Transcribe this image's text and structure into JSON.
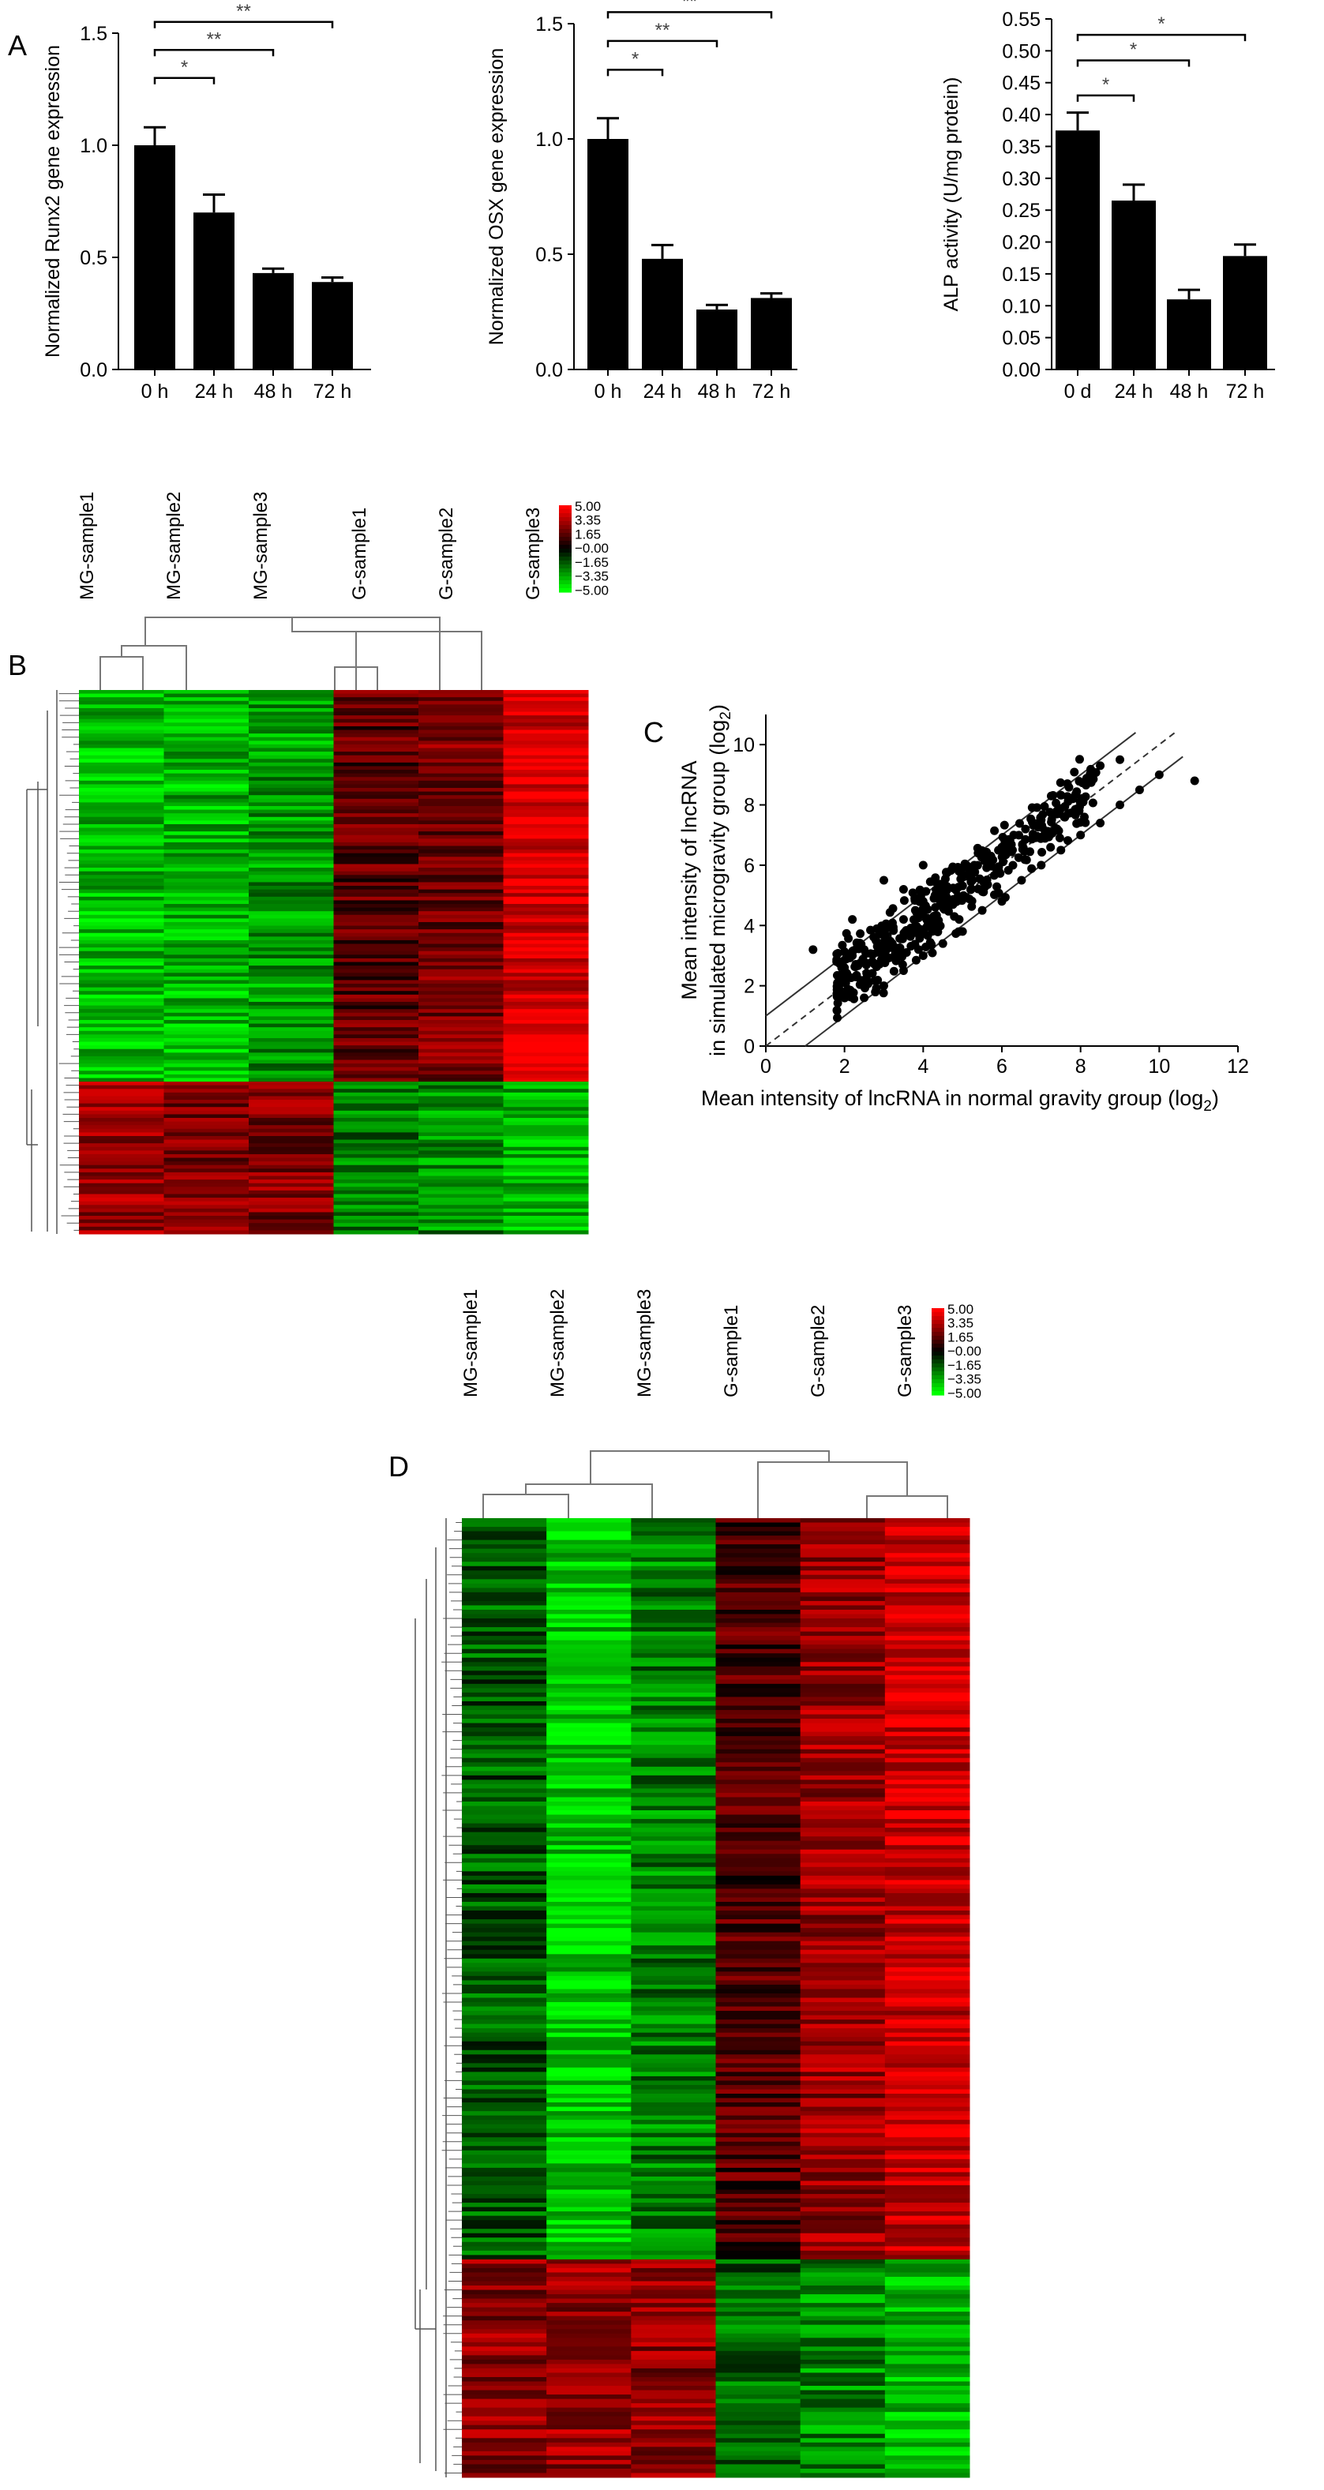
{
  "panels": {
    "A": "A",
    "B": "B",
    "C": "C",
    "D": "D"
  },
  "chart_data": [
    {
      "panel": "A",
      "type": "bar",
      "categories": [
        "0 h",
        "24 h",
        "48 h",
        "72 h"
      ],
      "values": [
        1.0,
        0.7,
        0.43,
        0.39
      ],
      "errors": [
        0.08,
        0.08,
        0.02,
        0.02
      ],
      "ylabel": "Normalized Runx2 gene expression",
      "ylim": [
        0,
        1.5
      ],
      "yticks": [
        "0.0",
        "0.5",
        "1.0",
        "1.5"
      ],
      "significance": [
        {
          "from": 0,
          "to": 1,
          "label": "*"
        },
        {
          "from": 0,
          "to": 2,
          "label": "**"
        },
        {
          "from": 0,
          "to": 3,
          "label": "**"
        }
      ]
    },
    {
      "panel": "A",
      "type": "bar",
      "categories": [
        "0 h",
        "24 h",
        "48 h",
        "72 h"
      ],
      "values": [
        1.0,
        0.48,
        0.26,
        0.31
      ],
      "errors": [
        0.09,
        0.06,
        0.02,
        0.02
      ],
      "ylabel": "Normalized OSX gene expression",
      "ylim": [
        0,
        1.5
      ],
      "yticks": [
        "0.0",
        "0.5",
        "1.0",
        "1.5"
      ],
      "significance": [
        {
          "from": 0,
          "to": 1,
          "label": "*"
        },
        {
          "from": 0,
          "to": 2,
          "label": "**"
        },
        {
          "from": 0,
          "to": 3,
          "label": "**"
        }
      ]
    },
    {
      "panel": "A",
      "type": "bar",
      "categories": [
        "0 d",
        "24 h",
        "48 h",
        "72 h"
      ],
      "values": [
        0.375,
        0.265,
        0.11,
        0.178
      ],
      "errors": [
        0.028,
        0.025,
        0.015,
        0.018
      ],
      "ylabel": "ALP activity (U/mg protein)",
      "ylim": [
        0,
        0.55
      ],
      "yticks": [
        "0.00",
        "0.05",
        "0.10",
        "0.15",
        "0.20",
        "0.25",
        "0.30",
        "0.35",
        "0.40",
        "0.45",
        "0.50",
        "0.55"
      ],
      "significance": [
        {
          "from": 0,
          "to": 1,
          "label": "*"
        },
        {
          "from": 0,
          "to": 2,
          "label": "*"
        },
        {
          "from": 0,
          "to": 3,
          "label": "*"
        }
      ]
    },
    {
      "panel": "B",
      "type": "heatmap",
      "columns": [
        "MG-sample1",
        "MG-sample2",
        "MG-sample3",
        "G-sample1",
        "G-sample2",
        "G-sample3"
      ],
      "legend_ticks": [
        "5.00",
        "3.35",
        "1.65",
        "−0.00",
        "−1.65",
        "−3.35",
        "−5.00"
      ],
      "colors": {
        "high": "#ff0000",
        "mid": "#000000",
        "low": "#00ff00"
      },
      "dendrogram_top": [
        [
          "MG-sample1",
          "MG-sample2"
        ],
        "MG-sample3",
        [
          [
            "G-sample1",
            "G-sample2"
          ],
          "G-sample3"
        ]
      ]
    },
    {
      "panel": "C",
      "type": "scatter",
      "xlabel": "Mean intensity of lncRNA in normal gravity group (log",
      "xlabel_sub": "2",
      "xlabel_end": ")",
      "ylabel_line1": "Mean intensity of lncRNA",
      "ylabel_line2": "in simulated microgravity group (log",
      "ylabel_sub": "2",
      "ylabel_end": ")",
      "xlim": [
        0,
        12
      ],
      "ylim": [
        0,
        11
      ],
      "xticks": [
        "0",
        "2",
        "4",
        "6",
        "8",
        "10",
        "12"
      ],
      "yticks": [
        "0",
        "2",
        "4",
        "6",
        "8",
        "10"
      ],
      "reference_lines": [
        {
          "style": "dashed",
          "slope": 1,
          "intercept": 0
        },
        {
          "style": "solid",
          "slope": 1,
          "intercept": 1
        },
        {
          "style": "solid",
          "slope": 1,
          "intercept": -1
        }
      ],
      "points_description_points": [
        [
          1.8,
          2.8
        ],
        [
          2.0,
          2.6
        ],
        [
          2.2,
          3.0
        ],
        [
          2.5,
          3.2
        ],
        [
          2.8,
          3.5
        ],
        [
          3.0,
          3.8
        ],
        [
          3.2,
          4.0
        ],
        [
          3.5,
          4.2
        ],
        [
          3.8,
          4.5
        ],
        [
          4.0,
          4.8
        ],
        [
          4.3,
          5.0
        ],
        [
          4.6,
          5.3
        ],
        [
          5.0,
          5.6
        ],
        [
          5.3,
          6.0
        ],
        [
          5.6,
          6.2
        ],
        [
          6.0,
          6.6
        ],
        [
          6.3,
          7.0
        ],
        [
          6.6,
          7.2
        ],
        [
          7.0,
          7.5
        ],
        [
          7.4,
          7.8
        ],
        [
          7.8,
          8.2
        ],
        [
          8.2,
          8.8
        ],
        [
          8.5,
          9.3
        ],
        [
          9.0,
          9.5
        ],
        [
          2.5,
          1.6
        ],
        [
          3.0,
          2.0
        ],
        [
          3.5,
          2.5
        ],
        [
          4.0,
          3.0
        ],
        [
          4.5,
          3.4
        ],
        [
          5.0,
          3.8
        ],
        [
          5.5,
          4.5
        ],
        [
          6.0,
          4.8
        ],
        [
          6.5,
          5.5
        ],
        [
          7.0,
          6.0
        ],
        [
          7.5,
          6.5
        ],
        [
          8.0,
          7.0
        ],
        [
          8.5,
          7.4
        ],
        [
          9.0,
          8.0
        ],
        [
          9.5,
          8.5
        ],
        [
          10.0,
          9.0
        ],
        [
          10.9,
          8.8
        ],
        [
          3.0,
          5.5
        ],
        [
          3.5,
          5.2
        ],
        [
          4.0,
          6.0
        ],
        [
          2.2,
          4.2
        ],
        [
          1.2,
          3.2
        ]
      ]
    },
    {
      "panel": "D",
      "type": "heatmap",
      "columns": [
        "MG-sample1",
        "MG-sample2",
        "MG-sample3",
        "G-sample1",
        "G-sample2",
        "G-sample3"
      ],
      "legend_ticks": [
        "5.00",
        "3.35",
        "1.65",
        "−0.00",
        "−1.65",
        "−3.35",
        "−5.00"
      ],
      "colors": {
        "high": "#ff0000",
        "mid": "#000000",
        "low": "#00ff00"
      },
      "dendrogram_top": [
        [
          [
            "MG-sample1",
            "MG-sample2"
          ],
          "MG-sample3"
        ],
        [
          "G-sample1",
          [
            "G-sample2",
            "G-sample3"
          ]
        ]
      ]
    }
  ]
}
